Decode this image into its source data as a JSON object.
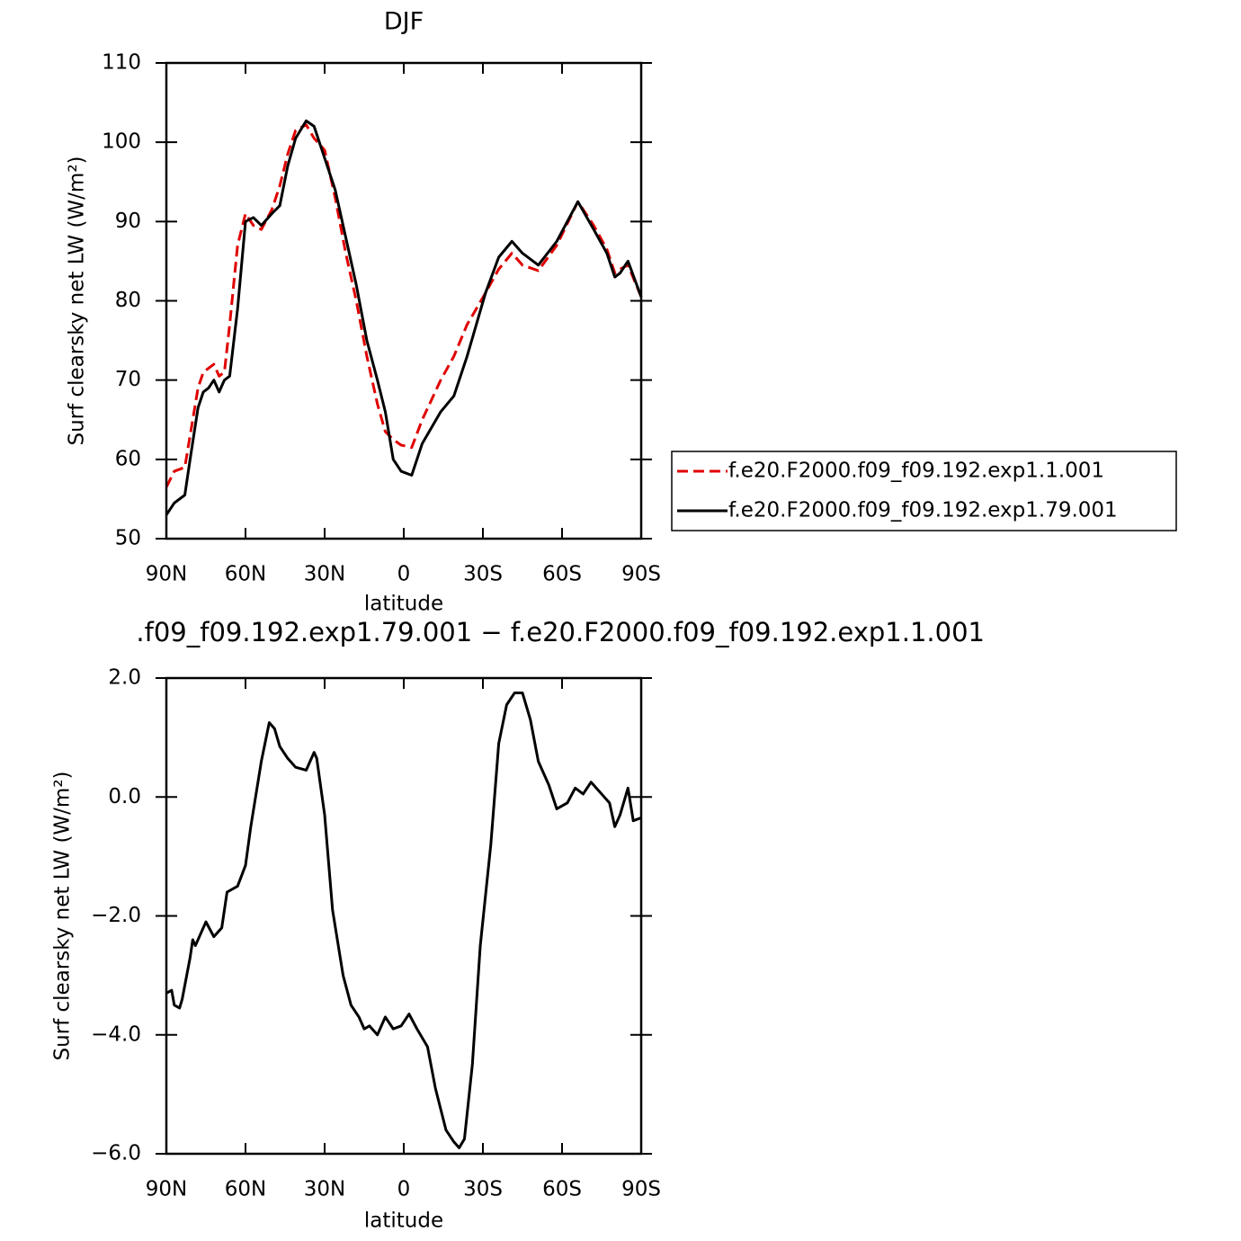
{
  "chart_data": [
    {
      "type": "line",
      "title": "DJF",
      "xlabel": "latitude",
      "ylabel": "Surf clearsky net LW (W/m²)",
      "xlim": [
        90,
        -90
      ],
      "ylim": [
        50,
        110
      ],
      "xticks": [
        {
          "value": 90,
          "label": "90N"
        },
        {
          "value": 60,
          "label": "60N"
        },
        {
          "value": 30,
          "label": "30N"
        },
        0,
        {
          "value": -30,
          "label": "30S"
        },
        {
          "value": -60,
          "label": "60S"
        },
        {
          "value": -90,
          "label": "90S"
        }
      ],
      "yticks": [
        50,
        60,
        70,
        80,
        90,
        100,
        110
      ],
      "legend": "right",
      "x": [
        90,
        87,
        83,
        81,
        78,
        76,
        74,
        72,
        70,
        68,
        66,
        63,
        60,
        57,
        54,
        50,
        47,
        44,
        41,
        37,
        34,
        30,
        26,
        22,
        18,
        14,
        10,
        7,
        4,
        1,
        -3,
        -7,
        -14,
        -19,
        -24,
        -31,
        -36,
        -41,
        -45,
        -51,
        -58,
        -66,
        -72,
        -77,
        -80,
        -82,
        -85,
        -90
      ],
      "series": [
        {
          "name": "f.e20.F2000.f09_f09.192.exp1.1.001",
          "color": "#e00000",
          "style": "dashed",
          "values": [
            56.5,
            58.5,
            59,
            63,
            69,
            71,
            71.5,
            72,
            70.5,
            71,
            77,
            87,
            91,
            89.5,
            89,
            91.5,
            94.5,
            98.5,
            101.5,
            102.2,
            100.5,
            99,
            93,
            86,
            80,
            73,
            67,
            63.5,
            62.5,
            61.8,
            61.5,
            65,
            70,
            73,
            77,
            81,
            84,
            86,
            84.5,
            83.8,
            87,
            92.5,
            89.5,
            86.5,
            83.5,
            84,
            84.5,
            80.5
          ]
        },
        {
          "name": "f.e20.F2000.f09_f09.192.exp1.79.001",
          "color": "#000000",
          "style": "solid",
          "values": [
            53,
            54.5,
            55.5,
            60,
            66.5,
            68.5,
            69,
            70,
            68.5,
            70,
            70.5,
            79,
            90,
            90.5,
            89.5,
            91,
            92,
            97,
            100.5,
            102.7,
            102,
            98,
            94,
            88,
            82,
            75,
            70,
            66,
            60,
            58.5,
            58,
            62,
            66,
            68,
            73,
            81,
            85.5,
            87.5,
            86,
            84.5,
            87.5,
            92.5,
            89,
            86,
            83,
            83.5,
            85,
            80.5
          ]
        }
      ]
    },
    {
      "type": "line",
      "title": ".f09_f09.192.exp1.79.001 − f.e20.F2000.f09_f09.192.exp1.1.001",
      "xlabel": "latitude",
      "ylabel": "Surf clearsky net LW (W/m²)",
      "xlim": [
        90,
        -90
      ],
      "ylim": [
        -6,
        2
      ],
      "xticks": [
        {
          "value": 90,
          "label": "90N"
        },
        {
          "value": 60,
          "label": "60N"
        },
        {
          "value": 30,
          "label": "30N"
        },
        0,
        {
          "value": -30,
          "label": "30S"
        },
        {
          "value": -60,
          "label": "60S"
        },
        {
          "value": -90,
          "label": "90S"
        }
      ],
      "yticks": [
        {
          "value": -6,
          "label": "−6.0"
        },
        {
          "value": -4,
          "label": "−4.0"
        },
        {
          "value": -2,
          "label": "−2.0"
        },
        {
          "value": 0,
          "label": "0.0"
        },
        {
          "value": 2,
          "label": "2.0"
        }
      ],
      "color": "#000000",
      "x": [
        90,
        88,
        87,
        85,
        84,
        81,
        80,
        79,
        75,
        72,
        69,
        67,
        63,
        60,
        58,
        54,
        51,
        49,
        47,
        44,
        41,
        37,
        34,
        33,
        30,
        27,
        23,
        20,
        17,
        15,
        13,
        10,
        7,
        4,
        1,
        -2,
        -5,
        -9,
        -12,
        -16,
        -19,
        -21,
        -23,
        -26,
        -29,
        -33,
        -36,
        -39,
        -42,
        -45,
        -48,
        -51,
        -55,
        -58,
        -62,
        -65,
        -68,
        -71,
        -75,
        -78,
        -80,
        -82,
        -85,
        -87,
        -90
      ],
      "values": [
        -3.3,
        -3.25,
        -3.5,
        -3.55,
        -3.4,
        -2.7,
        -2.4,
        -2.5,
        -2.1,
        -2.35,
        -2.2,
        -1.6,
        -1.5,
        -1.15,
        -0.5,
        0.6,
        1.25,
        1.15,
        0.85,
        0.65,
        0.5,
        0.45,
        0.75,
        0.65,
        -0.3,
        -1.9,
        -3,
        -3.5,
        -3.7,
        -3.9,
        -3.85,
        -4,
        -3.7,
        -3.9,
        -3.85,
        -3.65,
        -3.9,
        -4.2,
        -4.9,
        -5.6,
        -5.8,
        -5.9,
        -5.75,
        -4.5,
        -2.5,
        -0.8,
        0.9,
        1.55,
        1.75,
        1.75,
        1.3,
        0.6,
        0.2,
        -0.2,
        -0.1,
        0.15,
        0.05,
        0.25,
        0.05,
        -0.1,
        -0.5,
        -0.3,
        0.15,
        -0.4,
        -0.35
      ]
    }
  ]
}
